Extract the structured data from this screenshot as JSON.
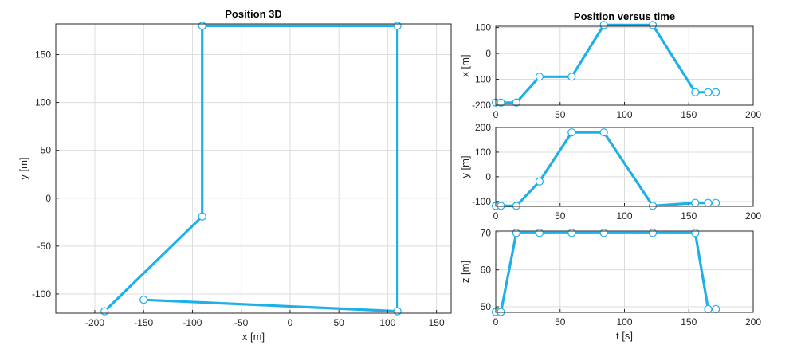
{
  "chart_data": [
    {
      "type": "line",
      "title": "Position 3D",
      "xlabel": "x [m]",
      "ylabel": "y [m]",
      "xlim": [
        -240,
        165
      ],
      "ylim": [
        -120,
        182
      ],
      "xticks": [
        -200,
        -150,
        -100,
        -50,
        0,
        50,
        100,
        150
      ],
      "yticks": [
        -100,
        -50,
        0,
        50,
        100,
        150
      ],
      "grid": true,
      "series": [
        {
          "color": "#1fb0ea",
          "x": [
            -190,
            -90,
            -90,
            110,
            110,
            -150
          ],
          "y": [
            -118,
            -19,
            180,
            180,
            -118,
            -106
          ]
        }
      ]
    },
    {
      "type": "line",
      "title": "Position versus time",
      "xlabel": "",
      "ylabel": "x [m]",
      "xlim": [
        0,
        200
      ],
      "ylim": [
        -200,
        105
      ],
      "xticks": [
        0,
        50,
        100,
        150,
        200
      ],
      "yticks": [
        -200,
        -100,
        0,
        100
      ],
      "grid": true,
      "series": [
        {
          "color": "#1fb0ea",
          "x": [
            0,
            4,
            16,
            34,
            59,
            84,
            122,
            155,
            165,
            171
          ],
          "y": [
            -190,
            -190,
            -190,
            -90,
            -90,
            110,
            110,
            -150,
            -150,
            -150
          ]
        }
      ]
    },
    {
      "type": "line",
      "title": "",
      "xlabel": "",
      "ylabel": "y [m]",
      "xlim": [
        0,
        200
      ],
      "ylim": [
        -120,
        200
      ],
      "xticks": [
        0,
        50,
        100,
        150,
        200
      ],
      "yticks": [
        -100,
        0,
        100,
        200
      ],
      "grid": true,
      "series": [
        {
          "color": "#1fb0ea",
          "x": [
            0,
            4,
            16,
            34,
            59,
            84,
            122,
            155,
            165,
            171
          ],
          "y": [
            -118,
            -118,
            -118,
            -19,
            180,
            180,
            -118,
            -106,
            -106,
            -106
          ]
        }
      ]
    },
    {
      "type": "line",
      "title": "",
      "xlabel": "t [s]",
      "ylabel": "z [m]",
      "xlim": [
        0,
        200
      ],
      "ylim": [
        48.5,
        70.5
      ],
      "xticks": [
        0,
        50,
        100,
        150,
        200
      ],
      "yticks": [
        50,
        60,
        70
      ],
      "grid": true,
      "series": [
        {
          "color": "#1fb0ea",
          "x": [
            0,
            4,
            16,
            34,
            59,
            84,
            122,
            155,
            165,
            171
          ],
          "y": [
            48.6,
            48.6,
            70,
            70,
            70,
            70,
            70,
            70,
            49.4,
            49.4
          ]
        }
      ]
    }
  ]
}
